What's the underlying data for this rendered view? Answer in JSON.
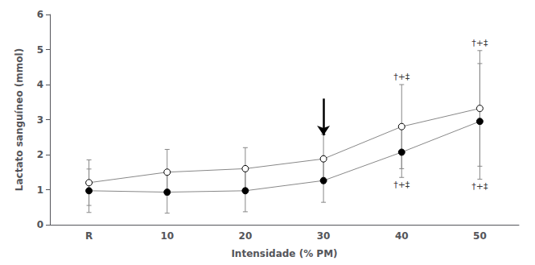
{
  "chart_data": {
    "type": "line",
    "xlabel": "Intensidade (% PM)",
    "ylabel": "Lactato sanguíneo (mmol)",
    "categories": [
      "R",
      "10",
      "20",
      "30",
      "40",
      "50"
    ],
    "series": [
      {
        "color": "#888888",
        "marker": "circle_open",
        "values": [
          1.2,
          1.5,
          1.6,
          1.88,
          2.8,
          3.32
        ],
        "errors": [
          0.65,
          0.65,
          0.6,
          0.7,
          1.2,
          1.65
        ],
        "annotations": [
          {
            "text": "†+‡",
            "x": "40",
            "position": "above"
          },
          {
            "text": "†+‡",
            "x": "50",
            "position": "above"
          }
        ]
      },
      {
        "color": "#888888",
        "marker": "circle_filled",
        "values": [
          0.97,
          0.93,
          0.97,
          1.26,
          2.07,
          2.95
        ],
        "errors": [
          0.62,
          0.6,
          0.6,
          0.62,
          0.72,
          1.65
        ],
        "annotations": [
          {
            "text": "†+‡",
            "x": "40",
            "position": "below"
          },
          {
            "text": "†+‡",
            "x": "50",
            "position": "below"
          }
        ]
      }
    ],
    "arrow": {
      "x": "30",
      "from": 3.6,
      "to": 2.55
    },
    "ylim": [
      0,
      6
    ],
    "yticks": [
      0,
      1,
      2,
      3,
      4,
      5,
      6
    ],
    "grid": false
  }
}
